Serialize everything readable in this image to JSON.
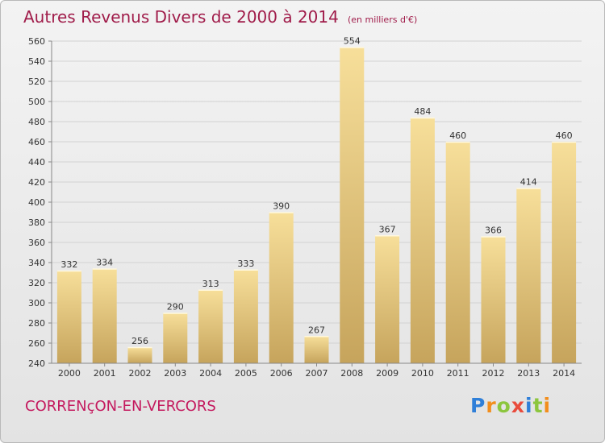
{
  "title": "Autres Revenus Divers de 2000 à 2014",
  "subtitle": "(en milliers d'€)",
  "location": "CORRENçON-EN-VERCORS",
  "logo": {
    "letters": [
      "P",
      "r",
      "o",
      "x",
      "i",
      "t",
      "i"
    ]
  },
  "colors": {
    "title": "#a01c4a",
    "location": "#c4195e",
    "bar_top": "#f7df9a",
    "bar_bottom": "#c6a45c"
  },
  "chart_data": {
    "type": "bar",
    "title": "Autres Revenus Divers de 2000 à 2014",
    "subtitle": "(en milliers d'€)",
    "categories": [
      "2000",
      "2001",
      "2002",
      "2003",
      "2004",
      "2005",
      "2006",
      "2007",
      "2008",
      "2009",
      "2010",
      "2011",
      "2012",
      "2013",
      "2014"
    ],
    "values": [
      332,
      334,
      256,
      290,
      313,
      333,
      390,
      267,
      554,
      367,
      484,
      460,
      366,
      414,
      460
    ],
    "ylim": [
      240,
      560
    ],
    "yticks": [
      240,
      260,
      280,
      300,
      320,
      340,
      360,
      380,
      400,
      420,
      440,
      460,
      480,
      500,
      520,
      540,
      560
    ],
    "grid": true,
    "legend": "none"
  }
}
